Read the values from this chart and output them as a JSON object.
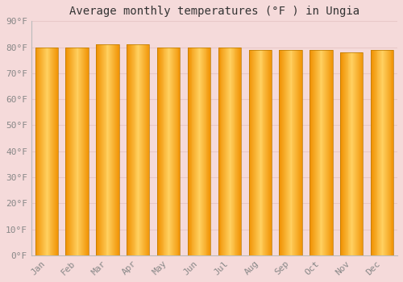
{
  "title": "Average monthly temperatures (°F ) in Ungia",
  "months": [
    "Jan",
    "Feb",
    "Mar",
    "Apr",
    "May",
    "Jun",
    "Jul",
    "Aug",
    "Sep",
    "Oct",
    "Nov",
    "Dec"
  ],
  "values": [
    80,
    80,
    81,
    81,
    80,
    80,
    80,
    79,
    79,
    79,
    78,
    79
  ],
  "ylim": [
    0,
    90
  ],
  "yticks": [
    0,
    10,
    20,
    30,
    40,
    50,
    60,
    70,
    80,
    90
  ],
  "ytick_labels": [
    "0°F",
    "10°F",
    "20°F",
    "30°F",
    "40°F",
    "50°F",
    "60°F",
    "70°F",
    "80°F",
    "90°F"
  ],
  "bar_edge_color": "#CC8800",
  "bar_color_center": "#FFD060",
  "bar_color_edge": "#F09000",
  "background_color": "#F5DADA",
  "plot_bg_color": "#F5DADA",
  "grid_color": "#E8C8C8",
  "title_fontsize": 10,
  "tick_fontsize": 8,
  "font_family": "monospace"
}
